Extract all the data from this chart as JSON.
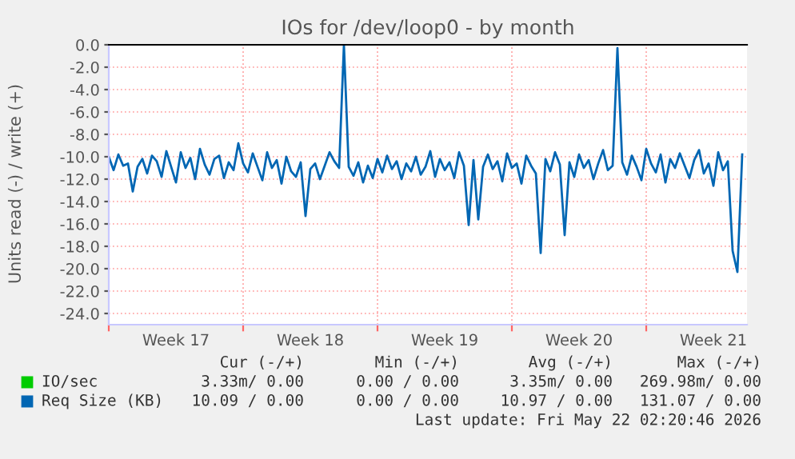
{
  "chart_data": {
    "type": "line",
    "title": "IOs for /dev/loop0 - by month",
    "ylabel": "Units read (-) / write (+)",
    "categories": [
      null,
      null,
      null,
      null,
      null,
      null,
      null,
      null,
      null,
      null,
      null,
      null,
      null,
      null,
      "Week 17",
      null,
      null,
      null,
      null,
      null,
      null,
      null,
      null,
      null,
      null,
      null,
      null,
      null,
      null,
      null,
      null,
      null,
      null,
      null,
      null,
      null,
      null,
      null,
      null,
      null,
      null,
      null,
      "Week 18",
      null,
      null,
      null,
      null,
      null,
      null,
      null,
      null,
      null,
      null,
      null,
      null,
      null,
      null,
      null,
      null,
      null,
      null,
      null,
      null,
      null,
      null,
      null,
      null,
      null,
      null,
      null,
      "Week 19",
      null,
      null,
      null,
      null,
      null,
      null,
      null,
      null,
      null,
      null,
      null,
      null,
      null,
      null,
      null,
      null,
      null,
      null,
      null,
      null,
      null,
      null,
      null,
      null,
      null,
      null,
      null,
      "Week 20",
      null,
      null,
      null,
      null,
      null,
      null,
      null,
      null,
      null,
      null,
      null,
      null,
      null,
      null,
      null,
      null,
      null,
      null,
      null,
      null,
      null,
      null,
      null,
      null,
      null,
      null,
      null,
      "Week 21",
      null,
      null,
      null,
      null,
      null,
      null
    ],
    "series": [
      {
        "name": "IO/sec",
        "color": "#00cc00",
        "values": [
          null,
          null,
          null,
          null,
          null,
          null,
          null,
          null,
          null,
          null,
          null,
          null,
          null,
          null,
          null,
          null,
          null,
          null,
          null,
          null,
          null,
          null,
          null,
          null,
          null,
          null,
          null,
          null,
          null,
          null,
          null,
          null,
          null,
          null,
          null,
          null,
          null,
          null,
          null,
          null,
          null,
          null,
          null,
          null,
          null,
          null,
          null,
          null,
          null,
          null,
          null,
          null,
          null,
          null,
          null,
          null,
          null,
          null,
          null,
          null,
          null,
          null,
          null,
          null,
          null,
          null,
          null,
          null,
          null,
          null,
          null,
          null,
          null,
          null,
          null,
          null,
          null,
          null,
          null,
          null,
          null,
          null,
          null,
          null,
          null,
          null,
          null,
          null,
          null,
          null,
          null,
          null,
          null,
          null,
          null,
          null,
          null,
          null,
          null,
          null,
          null,
          null,
          null,
          null,
          null,
          null,
          null,
          null,
          null,
          null,
          null,
          null,
          null,
          null,
          null,
          null,
          null,
          null,
          null,
          null,
          null,
          null,
          null,
          null,
          null,
          null,
          null,
          null,
          null,
          null,
          null,
          null,
          null
        ]
      },
      {
        "name": "Req Size (KB)",
        "color": "#0066b3",
        "values": [
          -10.0,
          -11.2,
          -9.8,
          -10.8,
          -10.6,
          -13.1,
          -10.9,
          -10.2,
          -11.5,
          -9.9,
          -10.4,
          -11.8,
          -9.5,
          -10.9,
          -12.3,
          -9.6,
          -11.0,
          -10.1,
          -12.0,
          -9.3,
          -10.7,
          -11.6,
          -10.2,
          -9.9,
          -11.9,
          -10.5,
          -11.2,
          -8.8,
          -10.6,
          -11.4,
          -9.7,
          -10.9,
          -12.1,
          -9.6,
          -11.0,
          -10.3,
          -12.4,
          -10.0,
          -11.3,
          -11.8,
          -10.5,
          -15.3,
          -11.1,
          -10.6,
          -12.0,
          -10.8,
          -9.6,
          -10.4,
          -11.0,
          0.0,
          -10.9,
          -11.7,
          -10.5,
          -12.3,
          -10.8,
          -11.9,
          -10.2,
          -11.4,
          -9.9,
          -11.1,
          -10.4,
          -12.0,
          -10.6,
          -11.3,
          -10.0,
          -11.6,
          -10.9,
          -9.5,
          -11.8,
          -10.2,
          -11.2,
          -10.5,
          -11.9,
          -9.6,
          -10.8,
          -16.1,
          -10.3,
          -15.6,
          -10.9,
          -9.8,
          -11.1,
          -10.4,
          -12.2,
          -9.7,
          -11.0,
          -10.6,
          -12.4,
          -9.9,
          -10.8,
          -11.5,
          -18.6,
          -10.2,
          -11.3,
          -9.6,
          -10.7,
          -17.0,
          -10.5,
          -11.8,
          -9.8,
          -11.0,
          -10.3,
          -12.0,
          -10.6,
          -9.4,
          -11.2,
          -10.8,
          -0.3,
          -10.5,
          -11.6,
          -9.9,
          -10.9,
          -12.1,
          -9.3,
          -10.6,
          -11.4,
          -9.8,
          -12.3,
          -10.2,
          -11.0,
          -9.7,
          -10.8,
          -11.9,
          -10.3,
          -9.4,
          -11.5,
          -10.6,
          -12.6,
          -9.6,
          -11.2,
          -10.4,
          -18.4,
          -20.3,
          -9.8
        ]
      }
    ],
    "ylim": [
      -25,
      0
    ],
    "yticks": [
      {
        "value": 0,
        "label": "0.0"
      },
      {
        "value": -2,
        "label": "-2.0"
      },
      {
        "value": -4,
        "label": "-4.0"
      },
      {
        "value": -6,
        "label": "-6.0"
      },
      {
        "value": -8,
        "label": "-8.0"
      },
      {
        "value": -10,
        "label": "-10.0"
      },
      {
        "value": -12,
        "label": "-12.0"
      },
      {
        "value": -14,
        "label": "-14.0"
      },
      {
        "value": -16,
        "label": "-16.0"
      },
      {
        "value": -18,
        "label": "-18.0"
      },
      {
        "value": -20,
        "label": "-20.0"
      },
      {
        "value": -22,
        "label": "-22.0"
      },
      {
        "value": -24,
        "label": "-24.0"
      }
    ],
    "grid": true,
    "legend": "bottom",
    "annotations": [
      "Cur (-/+)",
      "Min (-/+)",
      "Avg (-/+)",
      "Max (-/+)",
      "3.33m/ 0.00",
      "0.00 / 0.00",
      "3.35m/ 0.00",
      "269.98m/ 0.00",
      "10.09 / 0.00",
      "0.00 / 0.00",
      "10.97 / 0.00",
      "131.07 / 0.00",
      "Last update: Fri May 22 02:20:46 2026"
    ]
  }
}
